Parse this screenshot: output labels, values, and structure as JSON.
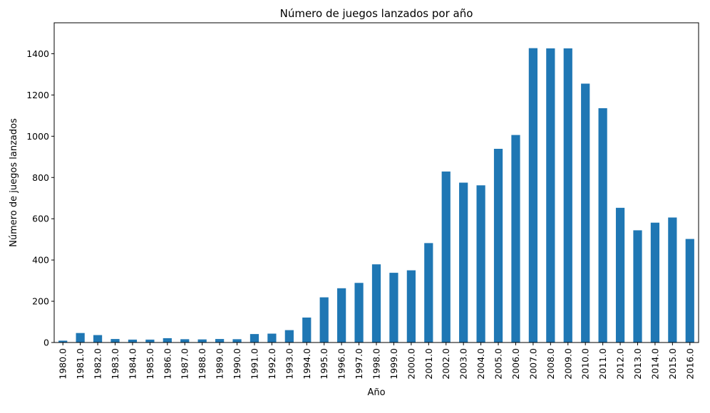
{
  "chart_data": {
    "type": "bar",
    "title": "Número de juegos lanzados por año",
    "xlabel": "Año",
    "ylabel": "Número de juegos lanzados",
    "ylim": [
      0,
      1550
    ],
    "yticks": [
      0,
      200,
      400,
      600,
      800,
      1000,
      1200,
      1400
    ],
    "grid": false,
    "bar_color": "#1f77b4",
    "categories": [
      "1980.0",
      "1981.0",
      "1982.0",
      "1983.0",
      "1984.0",
      "1985.0",
      "1986.0",
      "1987.0",
      "1988.0",
      "1989.0",
      "1990.0",
      "1991.0",
      "1992.0",
      "1993.0",
      "1994.0",
      "1995.0",
      "1996.0",
      "1997.0",
      "1998.0",
      "1999.0",
      "2000.0",
      "2001.0",
      "2002.0",
      "2003.0",
      "2004.0",
      "2005.0",
      "2006.0",
      "2007.0",
      "2008.0",
      "2009.0",
      "2010.0",
      "2011.0",
      "2012.0",
      "2013.0",
      "2014.0",
      "2015.0",
      "2016.0"
    ],
    "values": [
      9,
      46,
      36,
      17,
      14,
      14,
      21,
      16,
      15,
      17,
      16,
      41,
      43,
      60,
      121,
      219,
      263,
      289,
      379,
      338,
      350,
      482,
      829,
      775,
      762,
      939,
      1006,
      1427,
      1426,
      1426,
      1255,
      1136,
      653,
      544,
      581,
      606,
      502
    ]
  }
}
